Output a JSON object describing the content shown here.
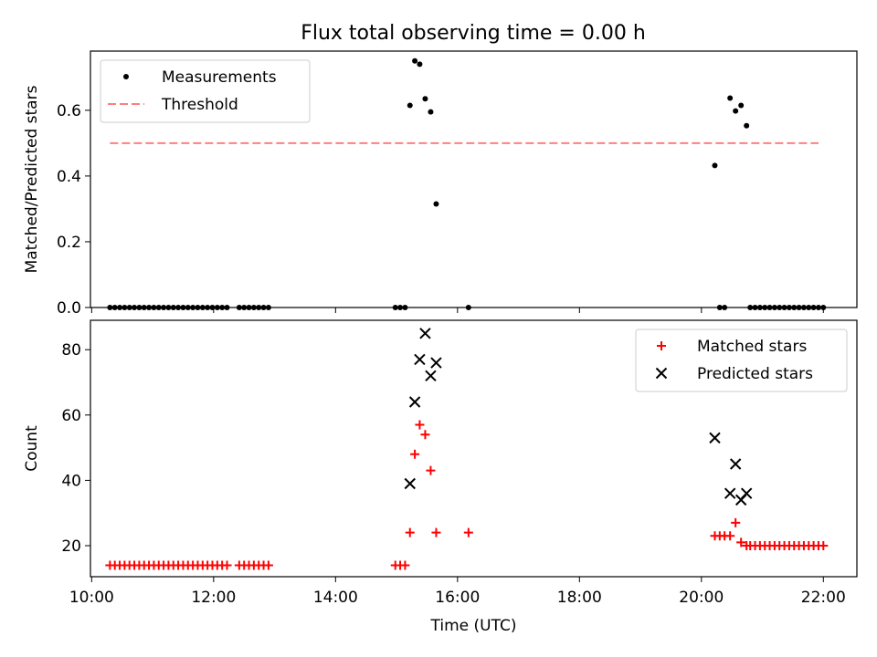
{
  "title": "Flux total observing time = 0.00 h",
  "chart_data": [
    {
      "type": "scatter",
      "ylabel": "Matched/Predicted stars",
      "xlabel": "",
      "xlim": [
        9.98,
        22.55
      ],
      "ylim": [
        0.0,
        0.78
      ],
      "x_ticks": [
        10,
        12,
        14,
        16,
        18,
        20,
        22
      ],
      "y_ticks": [
        0.0,
        0.2,
        0.4,
        0.6
      ],
      "y_tick_labels": [
        "0.0",
        "0.2",
        "0.4",
        "0.6"
      ],
      "legend_position": "upper left",
      "series": [
        {
          "name": "Measurements",
          "kind": "points",
          "color": "#000000",
          "marker": "dot",
          "points": [
            [
              10.3,
              0
            ],
            [
              10.38,
              0
            ],
            [
              10.46,
              0
            ],
            [
              10.54,
              0
            ],
            [
              10.62,
              0
            ],
            [
              10.7,
              0
            ],
            [
              10.78,
              0
            ],
            [
              10.86,
              0
            ],
            [
              10.94,
              0
            ],
            [
              11.02,
              0
            ],
            [
              11.1,
              0
            ],
            [
              11.18,
              0
            ],
            [
              11.26,
              0
            ],
            [
              11.34,
              0
            ],
            [
              11.42,
              0
            ],
            [
              11.5,
              0
            ],
            [
              11.58,
              0
            ],
            [
              11.66,
              0
            ],
            [
              11.74,
              0
            ],
            [
              11.82,
              0
            ],
            [
              11.9,
              0
            ],
            [
              11.98,
              0
            ],
            [
              12.06,
              0
            ],
            [
              12.14,
              0
            ],
            [
              12.22,
              0
            ],
            [
              12.42,
              0
            ],
            [
              12.5,
              0
            ],
            [
              12.58,
              0
            ],
            [
              12.66,
              0
            ],
            [
              12.74,
              0
            ],
            [
              12.82,
              0
            ],
            [
              12.9,
              0
            ],
            [
              14.98,
              0
            ],
            [
              15.06,
              0
            ],
            [
              15.14,
              0
            ],
            [
              15.22,
              0.615
            ],
            [
              15.3,
              0.75
            ],
            [
              15.38,
              0.74
            ],
            [
              15.47,
              0.635
            ],
            [
              15.56,
              0.595
            ],
            [
              15.65,
              0.315
            ],
            [
              16.18,
              0
            ],
            [
              20.22,
              0.432
            ],
            [
              20.3,
              0
            ],
            [
              20.38,
              0
            ],
            [
              20.47,
              0.637
            ],
            [
              20.56,
              0.598
            ],
            [
              20.65,
              0.615
            ],
            [
              20.74,
              0.553
            ],
            [
              20.8,
              0
            ],
            [
              20.88,
              0
            ],
            [
              20.96,
              0
            ],
            [
              21.04,
              0
            ],
            [
              21.12,
              0
            ],
            [
              21.2,
              0
            ],
            [
              21.28,
              0
            ],
            [
              21.36,
              0
            ],
            [
              21.44,
              0
            ],
            [
              21.52,
              0
            ],
            [
              21.6,
              0
            ],
            [
              21.68,
              0
            ],
            [
              21.76,
              0
            ],
            [
              21.84,
              0
            ],
            [
              21.92,
              0
            ],
            [
              22.0,
              0
            ]
          ]
        },
        {
          "name": "Threshold",
          "kind": "line",
          "color": "#ff7f7f",
          "dash": true,
          "points": [
            [
              10.3,
              0.5
            ],
            [
              21.92,
              0.5
            ]
          ]
        }
      ]
    },
    {
      "type": "scatter",
      "xlabel": "Time (UTC)",
      "ylabel": "Count",
      "xlim": [
        9.98,
        22.55
      ],
      "ylim": [
        10.5,
        89
      ],
      "x_ticks": [
        10,
        12,
        14,
        16,
        18,
        20,
        22
      ],
      "x_tick_labels": [
        "10:00",
        "12:00",
        "14:00",
        "16:00",
        "18:00",
        "20:00",
        "22:00"
      ],
      "y_ticks": [
        20,
        40,
        60,
        80
      ],
      "y_tick_labels": [
        "20",
        "40",
        "60",
        "80"
      ],
      "legend_position": "upper right",
      "series": [
        {
          "name": "Matched stars",
          "kind": "points",
          "color": "#ff0000",
          "marker": "plus",
          "points": [
            [
              10.3,
              14
            ],
            [
              10.38,
              14
            ],
            [
              10.46,
              14
            ],
            [
              10.54,
              14
            ],
            [
              10.62,
              14
            ],
            [
              10.7,
              14
            ],
            [
              10.78,
              14
            ],
            [
              10.86,
              14
            ],
            [
              10.94,
              14
            ],
            [
              11.02,
              14
            ],
            [
              11.1,
              14
            ],
            [
              11.18,
              14
            ],
            [
              11.26,
              14
            ],
            [
              11.34,
              14
            ],
            [
              11.42,
              14
            ],
            [
              11.5,
              14
            ],
            [
              11.58,
              14
            ],
            [
              11.66,
              14
            ],
            [
              11.74,
              14
            ],
            [
              11.82,
              14
            ],
            [
              11.9,
              14
            ],
            [
              11.98,
              14
            ],
            [
              12.06,
              14
            ],
            [
              12.14,
              14
            ],
            [
              12.22,
              14
            ],
            [
              12.42,
              14
            ],
            [
              12.5,
              14
            ],
            [
              12.58,
              14
            ],
            [
              12.66,
              14
            ],
            [
              12.74,
              14
            ],
            [
              12.82,
              14
            ],
            [
              12.9,
              14
            ],
            [
              14.98,
              14
            ],
            [
              15.06,
              14
            ],
            [
              15.14,
              14
            ],
            [
              15.22,
              24
            ],
            [
              15.3,
              48
            ],
            [
              15.38,
              57
            ],
            [
              15.47,
              54
            ],
            [
              15.56,
              43
            ],
            [
              15.65,
              24
            ],
            [
              16.18,
              24
            ],
            [
              20.22,
              23
            ],
            [
              20.3,
              23
            ],
            [
              20.38,
              23
            ],
            [
              20.47,
              23
            ],
            [
              20.56,
              27
            ],
            [
              20.65,
              21
            ],
            [
              20.74,
              20
            ],
            [
              20.8,
              20
            ],
            [
              20.88,
              20
            ],
            [
              20.96,
              20
            ],
            [
              21.04,
              20
            ],
            [
              21.12,
              20
            ],
            [
              21.2,
              20
            ],
            [
              21.28,
              20
            ],
            [
              21.36,
              20
            ],
            [
              21.44,
              20
            ],
            [
              21.52,
              20
            ],
            [
              21.6,
              20
            ],
            [
              21.68,
              20
            ],
            [
              21.76,
              20
            ],
            [
              21.84,
              20
            ],
            [
              21.92,
              20
            ],
            [
              22.0,
              20
            ]
          ]
        },
        {
          "name": "Predicted stars",
          "kind": "points",
          "color": "#000000",
          "marker": "x",
          "points": [
            [
              15.22,
              39
            ],
            [
              15.3,
              64
            ],
            [
              15.38,
              77
            ],
            [
              15.47,
              85
            ],
            [
              15.56,
              72
            ],
            [
              15.65,
              76
            ],
            [
              20.22,
              53
            ],
            [
              20.47,
              36
            ],
            [
              20.56,
              45
            ],
            [
              20.65,
              34
            ],
            [
              20.74,
              36
            ]
          ]
        }
      ]
    }
  ]
}
